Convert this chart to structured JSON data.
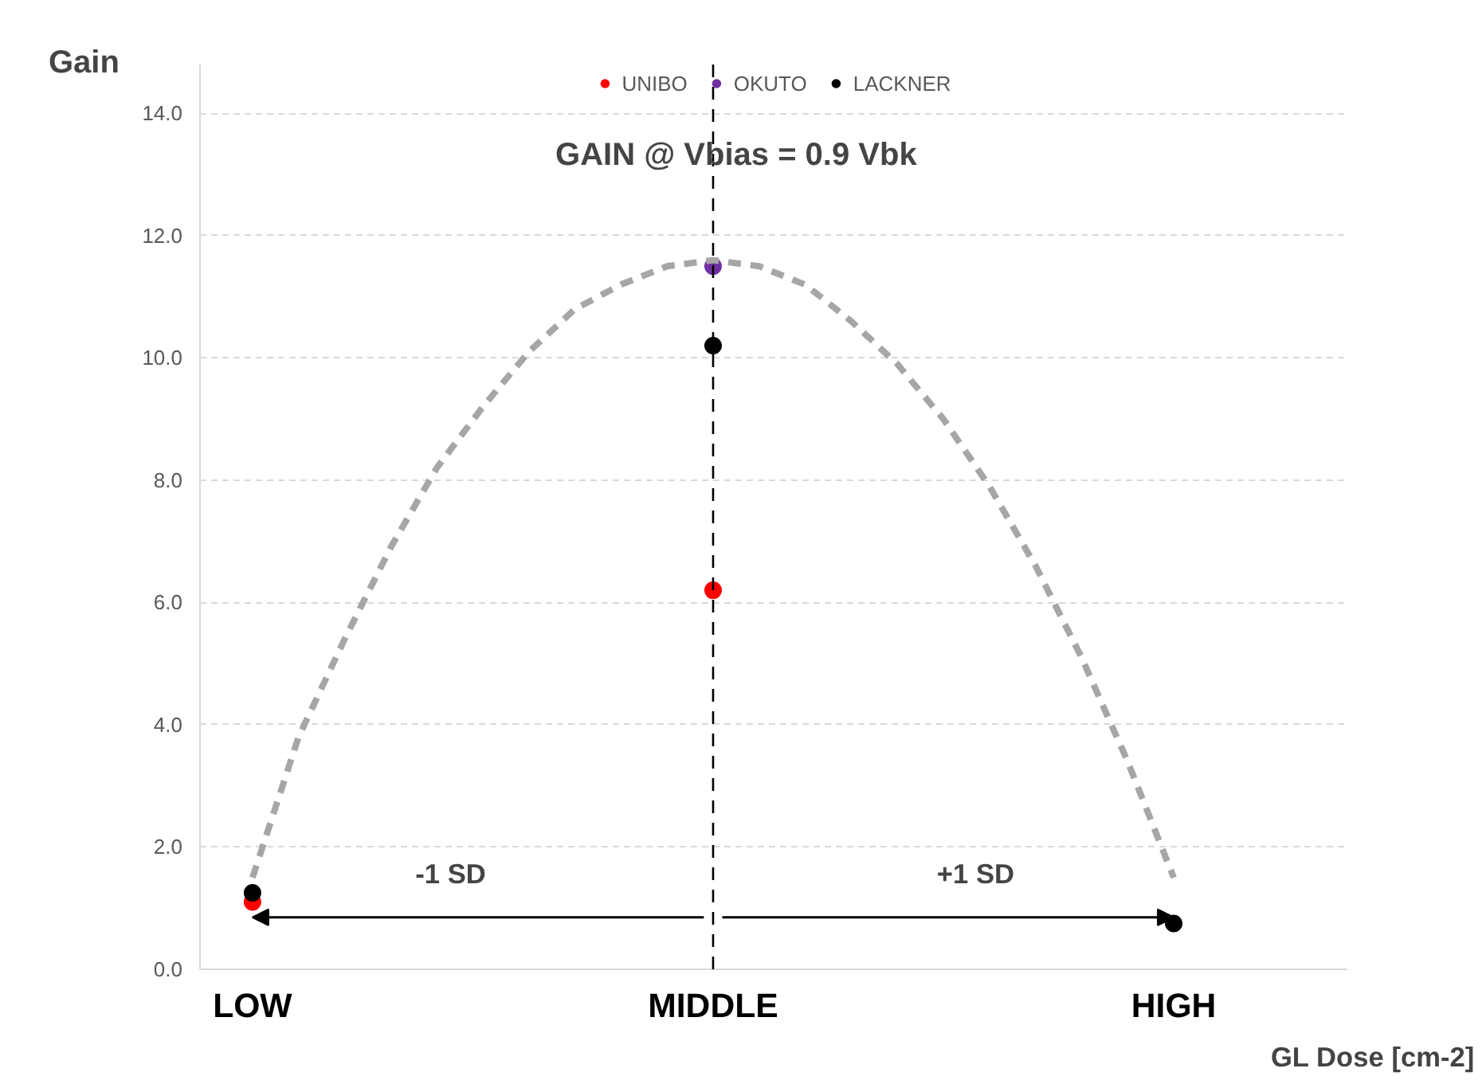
{
  "chart_data": {
    "type": "scatter",
    "title": "GAIN @ Vbias = 0.9 Vbk",
    "ylabel": "Gain",
    "xlabel": "GL Dose [cm-2]",
    "categories": [
      "LOW",
      null,
      null,
      null,
      null,
      null,
      null,
      null,
      null,
      null,
      "MIDDLE",
      null,
      null,
      null,
      null,
      null,
      null,
      null,
      null,
      null,
      "HIGH"
    ],
    "series": [
      {
        "name": "UNIBO",
        "color": "#ff0000",
        "values": [
          1.1,
          null,
          null,
          null,
          null,
          null,
          null,
          null,
          null,
          null,
          6.2,
          null,
          null,
          null,
          null,
          null,
          null,
          null,
          null,
          null,
          null
        ]
      },
      {
        "name": "OKUTO",
        "color": "#7030a0",
        "values": [
          null,
          null,
          null,
          null,
          null,
          null,
          null,
          null,
          null,
          null,
          11.5,
          null,
          null,
          null,
          null,
          null,
          null,
          null,
          null,
          null,
          null
        ]
      },
      {
        "name": "LACKNER",
        "color": "#000000",
        "values": [
          1.25,
          null,
          null,
          null,
          null,
          null,
          null,
          null,
          null,
          null,
          10.2,
          null,
          null,
          null,
          null,
          null,
          null,
          null,
          null,
          null,
          0.75
        ]
      },
      {
        "type": "line",
        "color": "#a6a6a6",
        "line_style": "dashed",
        "marker": "none",
        "values": [
          1.5,
          3.8,
          5.4,
          6.9,
          8.2,
          9.2,
          10.1,
          10.8,
          11.2,
          11.5,
          11.6,
          11.5,
          11.2,
          10.6,
          9.9,
          9.0,
          7.9,
          6.6,
          5.1,
          3.4,
          1.5
        ]
      }
    ],
    "ylim": [
      0,
      14.8
    ],
    "yticks": [
      {
        "value": 0,
        "label": "0.0"
      },
      {
        "value": 2,
        "label": "2.0"
      },
      {
        "value": 4,
        "label": "4.0"
      },
      {
        "value": 6,
        "label": "6.0"
      },
      {
        "value": 8,
        "label": "8.0"
      },
      {
        "value": 10,
        "label": "10.0"
      },
      {
        "value": 12,
        "label": "12.0"
      },
      {
        "value": 14,
        "label": "14.0"
      }
    ],
    "ref_lines": [
      {
        "axis": "x",
        "value": "MIDDLE",
        "color": "#000000",
        "line_style": "dashed"
      }
    ],
    "annotations": [
      "-1 SD",
      "+1 SD"
    ],
    "marker": "circle",
    "grid": "y",
    "legend": "top"
  }
}
